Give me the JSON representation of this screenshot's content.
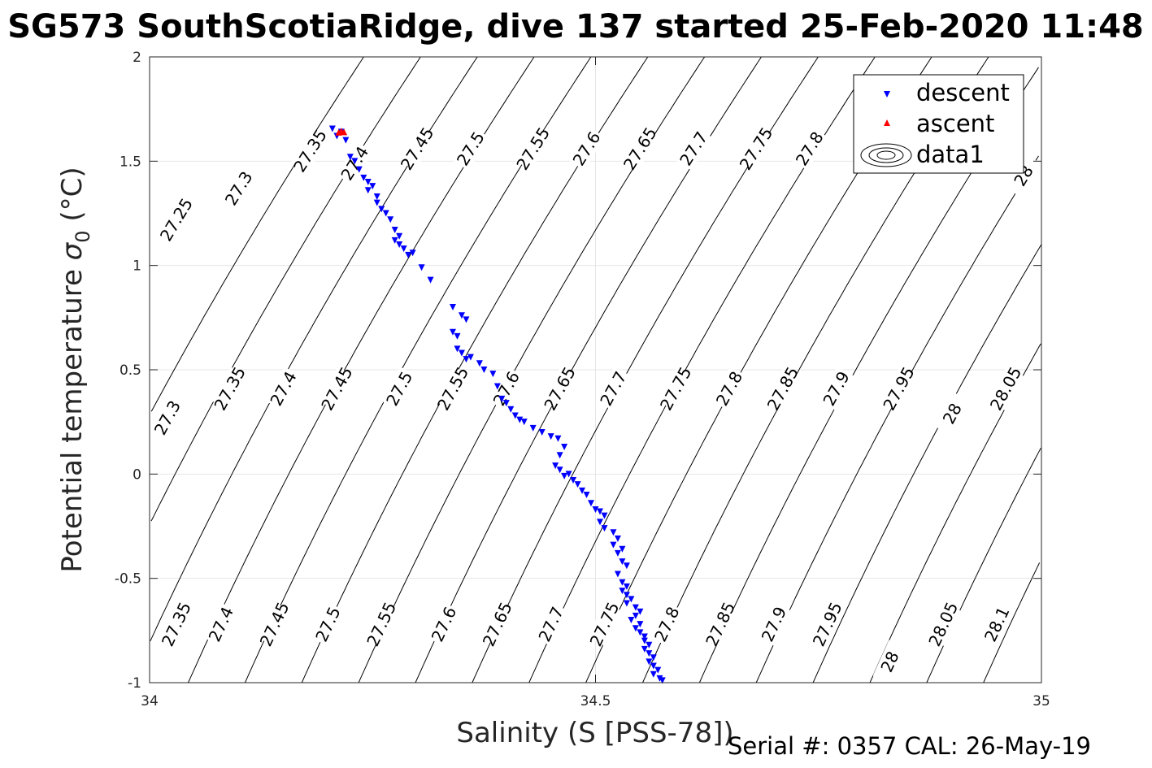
{
  "title": "SG573 SouthScotiaRidge, dive 137 started 25-Feb-2020 11:48",
  "footer": "Serial #: 0357  CAL: 26-May-19",
  "chart_data": {
    "type": "scatter",
    "title": "SG573 SouthScotiaRidge, dive 137 started 25-Feb-2020 11:48",
    "xlabel": "Salinity (S [PSS-78])",
    "ylabel_main": "Potential temperature ",
    "ylabel_sym": "σ",
    "ylabel_sub": "0",
    "ylabel_unit": " (°C)",
    "xlim": [
      34,
      35
    ],
    "ylim": [
      -1,
      2
    ],
    "x_ticks": [
      "34",
      "34.5",
      "35"
    ],
    "y_ticks": [
      "-1",
      "-0.5",
      "0",
      "0.5",
      "1",
      "1.5",
      "2"
    ],
    "grid": true,
    "legend": {
      "placement": "top-right",
      "entries": [
        "descent",
        "ascent",
        "data1"
      ]
    },
    "colors": {
      "descent": "#0000ff",
      "ascent": "#ff0000",
      "contour": "#000000",
      "grid": "#e6e6e6",
      "axes": "#262626"
    },
    "contour_levels": [
      27.25,
      27.3,
      27.35,
      27.4,
      27.45,
      27.5,
      27.55,
      27.6,
      27.65,
      27.7,
      27.75,
      27.8,
      27.85,
      27.9,
      27.95,
      28,
      28.05,
      28.1
    ],
    "contour_labels_shown": [
      {
        "text": "27.25",
        "x": 34.03,
        "y": 1.22
      },
      {
        "text": "27.3",
        "x": 34.1,
        "y": 1.37
      },
      {
        "text": "27.35",
        "x": 34.18,
        "y": 1.55
      },
      {
        "text": "27.4",
        "x": 34.23,
        "y": 1.49
      },
      {
        "text": "27.45",
        "x": 34.3,
        "y": 1.56
      },
      {
        "text": "27.5",
        "x": 34.36,
        "y": 1.56
      },
      {
        "text": "27.55",
        "x": 34.43,
        "y": 1.56
      },
      {
        "text": "27.6",
        "x": 34.49,
        "y": 1.56
      },
      {
        "text": "27.65",
        "x": 34.55,
        "y": 1.56
      },
      {
        "text": "27.7",
        "x": 34.61,
        "y": 1.56
      },
      {
        "text": "27.75",
        "x": 34.68,
        "y": 1.56
      },
      {
        "text": "27.8",
        "x": 34.74,
        "y": 1.56
      },
      {
        "text": "27.3",
        "x": 34.02,
        "y": 0.27
      },
      {
        "text": "27.35",
        "x": 34.09,
        "y": 0.41
      },
      {
        "text": "27.4",
        "x": 34.15,
        "y": 0.41
      },
      {
        "text": "27.45",
        "x": 34.21,
        "y": 0.41
      },
      {
        "text": "27.5",
        "x": 34.28,
        "y": 0.41
      },
      {
        "text": "27.55",
        "x": 34.34,
        "y": 0.41
      },
      {
        "text": "27.6",
        "x": 34.4,
        "y": 0.41
      },
      {
        "text": "27.65",
        "x": 34.46,
        "y": 0.41
      },
      {
        "text": "27.7",
        "x": 34.52,
        "y": 0.41
      },
      {
        "text": "27.75",
        "x": 34.59,
        "y": 0.41
      },
      {
        "text": "27.8",
        "x": 34.65,
        "y": 0.41
      },
      {
        "text": "27.85",
        "x": 34.71,
        "y": 0.41
      },
      {
        "text": "27.9",
        "x": 34.77,
        "y": 0.41
      },
      {
        "text": "27.95",
        "x": 34.84,
        "y": 0.41
      },
      {
        "text": "28",
        "x": 34.9,
        "y": 0.29
      },
      {
        "text": "28.05",
        "x": 34.96,
        "y": 0.41
      },
      {
        "text": "27.35",
        "x": 34.03,
        "y": -0.72
      },
      {
        "text": "27.4",
        "x": 34.08,
        "y": -0.72
      },
      {
        "text": "27.45",
        "x": 34.14,
        "y": -0.72
      },
      {
        "text": "27.5",
        "x": 34.2,
        "y": -0.72
      },
      {
        "text": "27.55",
        "x": 34.26,
        "y": -0.72
      },
      {
        "text": "27.6",
        "x": 34.33,
        "y": -0.72
      },
      {
        "text": "27.65",
        "x": 34.39,
        "y": -0.72
      },
      {
        "text": "27.7",
        "x": 34.45,
        "y": -0.72
      },
      {
        "text": "27.75",
        "x": 34.51,
        "y": -0.72
      },
      {
        "text": "27.8",
        "x": 34.58,
        "y": -0.72
      },
      {
        "text": "27.85",
        "x": 34.64,
        "y": -0.72
      },
      {
        "text": "27.9",
        "x": 34.7,
        "y": -0.72
      },
      {
        "text": "27.95",
        "x": 34.76,
        "y": -0.72
      },
      {
        "text": "28",
        "x": 34.83,
        "y": -0.9
      },
      {
        "text": "28.05",
        "x": 34.89,
        "y": -0.72
      },
      {
        "text": "28.1",
        "x": 34.95,
        "y": -0.72
      },
      {
        "text": "28",
        "x": 34.98,
        "y": 1.43
      }
    ],
    "series": [
      {
        "name": "descent",
        "marker": "triangle-down",
        "points": [
          [
            34.205,
            1.655
          ],
          [
            34.215,
            1.64
          ],
          [
            34.21,
            1.62
          ],
          [
            34.22,
            1.6
          ],
          [
            34.225,
            1.52
          ],
          [
            34.23,
            1.5
          ],
          [
            34.235,
            1.46
          ],
          [
            34.24,
            1.42
          ],
          [
            34.245,
            1.4
          ],
          [
            34.25,
            1.38
          ],
          [
            34.245,
            1.36
          ],
          [
            34.255,
            1.33
          ],
          [
            34.255,
            1.3
          ],
          [
            34.26,
            1.27
          ],
          [
            34.265,
            1.25
          ],
          [
            34.27,
            1.22
          ],
          [
            34.275,
            1.17
          ],
          [
            34.28,
            1.14
          ],
          [
            34.275,
            1.12
          ],
          [
            34.28,
            1.1
          ],
          [
            34.285,
            1.08
          ],
          [
            34.29,
            1.05
          ],
          [
            34.295,
            1.06
          ],
          [
            34.305,
            0.99
          ],
          [
            34.315,
            0.93
          ],
          [
            34.34,
            0.8
          ],
          [
            34.35,
            0.76
          ],
          [
            34.355,
            0.74
          ],
          [
            34.34,
            0.68
          ],
          [
            34.345,
            0.66
          ],
          [
            34.345,
            0.6
          ],
          [
            34.35,
            0.58
          ],
          [
            34.355,
            0.55
          ],
          [
            34.36,
            0.56
          ],
          [
            34.37,
            0.53
          ],
          [
            34.375,
            0.5
          ],
          [
            34.385,
            0.48
          ],
          [
            34.39,
            0.42
          ],
          [
            34.395,
            0.36
          ],
          [
            34.4,
            0.34
          ],
          [
            34.405,
            0.31
          ],
          [
            34.41,
            0.28
          ],
          [
            34.415,
            0.26
          ],
          [
            34.42,
            0.25
          ],
          [
            34.43,
            0.22
          ],
          [
            34.44,
            0.2
          ],
          [
            34.45,
            0.18
          ],
          [
            34.458,
            0.17
          ],
          [
            34.465,
            0.13
          ],
          [
            34.46,
            0.09
          ],
          [
            34.455,
            0.04
          ],
          [
            34.46,
            0.02
          ],
          [
            34.465,
            -0.01
          ],
          [
            34.47,
            0.0
          ],
          [
            34.475,
            -0.03
          ],
          [
            34.48,
            -0.05
          ],
          [
            34.485,
            -0.08
          ],
          [
            34.49,
            -0.1
          ],
          [
            34.495,
            -0.14
          ],
          [
            34.5,
            -0.17
          ],
          [
            34.505,
            -0.18
          ],
          [
            34.51,
            -0.2
          ],
          [
            34.505,
            -0.23
          ],
          [
            34.51,
            -0.26
          ],
          [
            34.52,
            -0.28
          ],
          [
            34.525,
            -0.31
          ],
          [
            34.52,
            -0.34
          ],
          [
            34.53,
            -0.36
          ],
          [
            34.525,
            -0.38
          ],
          [
            34.53,
            -0.42
          ],
          [
            34.535,
            -0.44
          ],
          [
            34.525,
            -0.48
          ],
          [
            34.53,
            -0.52
          ],
          [
            34.535,
            -0.54
          ],
          [
            34.53,
            -0.56
          ],
          [
            34.535,
            -0.58
          ],
          [
            34.54,
            -0.6
          ],
          [
            34.535,
            -0.62
          ],
          [
            34.545,
            -0.64
          ],
          [
            34.55,
            -0.66
          ],
          [
            34.545,
            -0.68
          ],
          [
            34.54,
            -0.7
          ],
          [
            34.55,
            -0.72
          ],
          [
            34.545,
            -0.74
          ],
          [
            34.55,
            -0.76
          ],
          [
            34.555,
            -0.78
          ],
          [
            34.555,
            -0.8
          ],
          [
            34.56,
            -0.82
          ],
          [
            34.555,
            -0.84
          ],
          [
            34.56,
            -0.86
          ],
          [
            34.565,
            -0.88
          ],
          [
            34.56,
            -0.9
          ],
          [
            34.565,
            -0.92
          ],
          [
            34.57,
            -0.94
          ],
          [
            34.565,
            -0.96
          ],
          [
            34.572,
            -0.98
          ],
          [
            34.575,
            -0.99
          ]
        ]
      },
      {
        "name": "ascent",
        "marker": "triangle-up",
        "points": [
          [
            34.215,
            1.645
          ],
          [
            34.218,
            1.64
          ],
          [
            34.212,
            1.638
          ]
        ]
      }
    ]
  }
}
